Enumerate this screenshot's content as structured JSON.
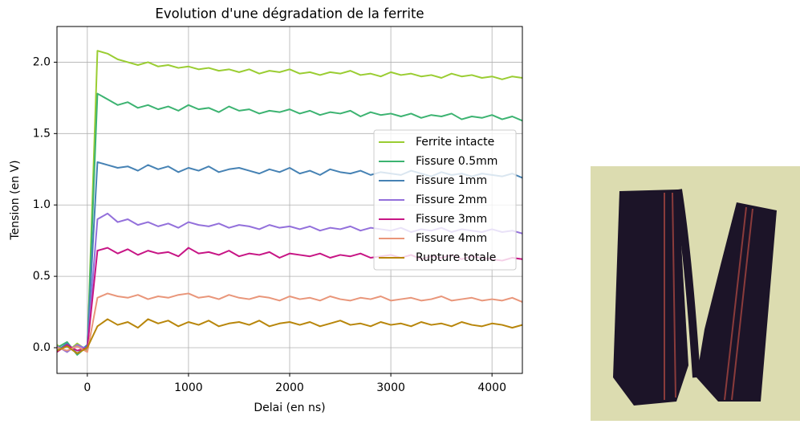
{
  "chart_data": {
    "type": "line",
    "title": "Evolution d'une dégradation de la ferrite",
    "x_label": "Delai (en ns)",
    "y_label": "Tension (en V)",
    "x": [
      -300,
      -200,
      -100,
      0,
      100,
      200,
      300,
      400,
      500,
      600,
      700,
      800,
      900,
      1000,
      1100,
      1200,
      1300,
      1400,
      1500,
      1600,
      1700,
      1800,
      1900,
      2000,
      2100,
      2200,
      2300,
      2400,
      2500,
      2600,
      2700,
      2800,
      2900,
      3000,
      3100,
      3200,
      3300,
      3400,
      3500,
      3600,
      3700,
      3800,
      3900,
      4000,
      4100,
      4200,
      4300
    ],
    "series": [
      {
        "name": "Ferrite intacte",
        "color": "#9acd32",
        "values": [
          0.02,
          -0.03,
          0.03,
          -0.02,
          2.08,
          2.06,
          2.02,
          2.0,
          1.98,
          2.0,
          1.97,
          1.98,
          1.96,
          1.97,
          1.95,
          1.96,
          1.94,
          1.95,
          1.93,
          1.95,
          1.92,
          1.94,
          1.93,
          1.95,
          1.92,
          1.93,
          1.91,
          1.93,
          1.92,
          1.94,
          1.91,
          1.92,
          1.9,
          1.93,
          1.91,
          1.92,
          1.9,
          1.91,
          1.89,
          1.92,
          1.9,
          1.91,
          1.89,
          1.9,
          1.88,
          1.9,
          1.89
        ]
      },
      {
        "name": "Fissure 0.5mm",
        "color": "#3cb371",
        "values": [
          0.0,
          0.04,
          -0.05,
          0.01,
          1.78,
          1.74,
          1.7,
          1.72,
          1.68,
          1.7,
          1.67,
          1.69,
          1.66,
          1.7,
          1.67,
          1.68,
          1.65,
          1.69,
          1.66,
          1.67,
          1.64,
          1.66,
          1.65,
          1.67,
          1.64,
          1.66,
          1.63,
          1.65,
          1.64,
          1.66,
          1.62,
          1.65,
          1.63,
          1.64,
          1.62,
          1.64,
          1.61,
          1.63,
          1.62,
          1.64,
          1.6,
          1.62,
          1.61,
          1.63,
          1.6,
          1.62,
          1.59
        ]
      },
      {
        "name": "Fissure 1mm",
        "color": "#4682b4",
        "values": [
          -0.02,
          0.03,
          -0.04,
          0.02,
          1.3,
          1.28,
          1.26,
          1.27,
          1.24,
          1.28,
          1.25,
          1.27,
          1.23,
          1.26,
          1.24,
          1.27,
          1.23,
          1.25,
          1.26,
          1.24,
          1.22,
          1.25,
          1.23,
          1.26,
          1.22,
          1.24,
          1.21,
          1.25,
          1.23,
          1.22,
          1.24,
          1.21,
          1.23,
          1.22,
          1.21,
          1.24,
          1.22,
          1.2,
          1.23,
          1.21,
          1.22,
          1.2,
          1.22,
          1.21,
          1.2,
          1.22,
          1.19
        ]
      },
      {
        "name": "Fissure 2mm",
        "color": "#9370db",
        "values": [
          0.01,
          -0.03,
          0.02,
          -0.01,
          0.9,
          0.94,
          0.88,
          0.9,
          0.86,
          0.88,
          0.85,
          0.87,
          0.84,
          0.88,
          0.86,
          0.85,
          0.87,
          0.84,
          0.86,
          0.85,
          0.83,
          0.86,
          0.84,
          0.85,
          0.83,
          0.85,
          0.82,
          0.84,
          0.83,
          0.85,
          0.82,
          0.84,
          0.83,
          0.82,
          0.84,
          0.81,
          0.83,
          0.82,
          0.84,
          0.81,
          0.83,
          0.82,
          0.81,
          0.83,
          0.81,
          0.82,
          0.8
        ]
      },
      {
        "name": "Fissure 3mm",
        "color": "#c71585",
        "values": [
          -0.03,
          0.02,
          -0.02,
          0.0,
          0.68,
          0.7,
          0.66,
          0.69,
          0.65,
          0.68,
          0.66,
          0.67,
          0.64,
          0.7,
          0.66,
          0.67,
          0.65,
          0.68,
          0.64,
          0.66,
          0.65,
          0.67,
          0.63,
          0.66,
          0.65,
          0.64,
          0.66,
          0.63,
          0.65,
          0.64,
          0.66,
          0.63,
          0.64,
          0.65,
          0.63,
          0.65,
          0.62,
          0.64,
          0.63,
          0.65,
          0.62,
          0.64,
          0.63,
          0.62,
          0.61,
          0.63,
          0.62
        ]
      },
      {
        "name": "Fissure 4mm",
        "color": "#e9967a",
        "values": [
          0.0,
          -0.02,
          0.01,
          -0.03,
          0.35,
          0.38,
          0.36,
          0.35,
          0.37,
          0.34,
          0.36,
          0.35,
          0.37,
          0.38,
          0.35,
          0.36,
          0.34,
          0.37,
          0.35,
          0.34,
          0.36,
          0.35,
          0.33,
          0.36,
          0.34,
          0.35,
          0.33,
          0.36,
          0.34,
          0.33,
          0.35,
          0.34,
          0.36,
          0.33,
          0.34,
          0.35,
          0.33,
          0.34,
          0.36,
          0.33,
          0.34,
          0.35,
          0.33,
          0.34,
          0.33,
          0.35,
          0.32
        ]
      },
      {
        "name": "Rupture totale",
        "color": "#b8860b",
        "values": [
          -0.02,
          0.01,
          -0.04,
          0.0,
          0.15,
          0.2,
          0.16,
          0.18,
          0.14,
          0.2,
          0.17,
          0.19,
          0.15,
          0.18,
          0.16,
          0.19,
          0.15,
          0.17,
          0.18,
          0.16,
          0.19,
          0.15,
          0.17,
          0.18,
          0.16,
          0.18,
          0.15,
          0.17,
          0.19,
          0.16,
          0.17,
          0.15,
          0.18,
          0.16,
          0.17,
          0.15,
          0.18,
          0.16,
          0.17,
          0.15,
          0.18,
          0.16,
          0.15,
          0.17,
          0.16,
          0.14,
          0.16
        ]
      }
    ],
    "xlim": [
      -300,
      4300
    ],
    "xticks": [
      0,
      1000,
      2000,
      3000,
      4000
    ],
    "ylim": [
      -0.18,
      2.25
    ],
    "yticks": [
      {
        "value": 0,
        "label": "0.0"
      },
      0.5,
      {
        "value": 1,
        "label": "1.0"
      },
      1.5,
      {
        "value": 2,
        "label": "2.0"
      }
    ],
    "grid": true,
    "legend": "right"
  }
}
